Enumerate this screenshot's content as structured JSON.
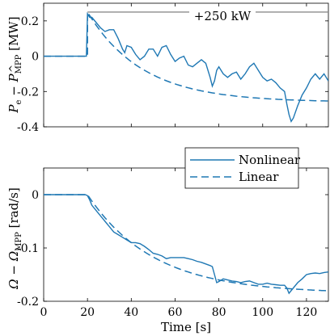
{
  "chart_data": [
    {
      "type": "line",
      "ylabel": "P_e − P̂_MPP [MW]",
      "ylabel_main": "P",
      "ylabel_main_sub": "e",
      "ylabel_minus": " − ",
      "ylabel_hat": "P",
      "ylabel_hat_sub": "MPP",
      "ylabel_unit": " [MW]",
      "xlim": [
        0,
        130
      ],
      "ylim": [
        -0.4,
        0.3
      ],
      "xticks": [
        0,
        20,
        40,
        60,
        80,
        100,
        120
      ],
      "yticks": [
        0.2,
        0,
        -0.2,
        -0.4
      ],
      "ytick_labels": [
        "0.2",
        "0",
        "-0.2",
        "-0.4"
      ],
      "annotation": "+250 kW",
      "reference_line": {
        "x": [
          20,
          130
        ],
        "y": 0.25
      },
      "series": [
        {
          "name": "Nonlinear",
          "style": "solid",
          "x": [
            0,
            19.5,
            20,
            21,
            22,
            24,
            26,
            28,
            30,
            32,
            34,
            36,
            37,
            38,
            40,
            42,
            44,
            45,
            46,
            48,
            50,
            52,
            54,
            56,
            58,
            60,
            62,
            64,
            66,
            68,
            70,
            72,
            74,
            76,
            77,
            78,
            79,
            80,
            82,
            84,
            86,
            88,
            90,
            92,
            94,
            96,
            98,
            100,
            102,
            104,
            106,
            108,
            110,
            111,
            112,
            113,
            114,
            116,
            118,
            120,
            122,
            124,
            126,
            128,
            130
          ],
          "y": [
            0,
            0,
            0.24,
            0.22,
            0.22,
            0.19,
            0.16,
            0.14,
            0.15,
            0.15,
            0.1,
            0.04,
            0.02,
            0.06,
            0.05,
            0.01,
            -0.02,
            -0.01,
            0.0,
            0.04,
            0.04,
            0.0,
            0.05,
            0.06,
            0.01,
            -0.03,
            -0.01,
            0.0,
            -0.05,
            -0.06,
            -0.04,
            -0.02,
            -0.04,
            -0.12,
            -0.17,
            -0.14,
            -0.08,
            -0.06,
            -0.1,
            -0.12,
            -0.1,
            -0.09,
            -0.13,
            -0.1,
            -0.06,
            -0.04,
            -0.08,
            -0.12,
            -0.14,
            -0.13,
            -0.15,
            -0.18,
            -0.2,
            -0.27,
            -0.33,
            -0.37,
            -0.35,
            -0.28,
            -0.22,
            -0.18,
            -0.13,
            -0.1,
            -0.13,
            -0.1,
            -0.14
          ]
        },
        {
          "name": "Linear",
          "style": "dashed",
          "x": [
            0,
            20,
            130
          ],
          "y": [
            0,
            0.25,
            -0.26
          ],
          "model": "exponential",
          "tau": 25
        }
      ]
    },
    {
      "type": "line",
      "xlabel": "Time [s]",
      "ylabel": "Ω − Ω̂_MPP [rad/s]",
      "ylabel_main": "Ω",
      "ylabel_minus": " − ",
      "ylabel_hat": "Ω",
      "ylabel_hat_sub": "MPP",
      "ylabel_unit": " [rad/s]",
      "xlim": [
        0,
        130
      ],
      "ylim": [
        -0.2,
        0.05
      ],
      "xticks": [
        0,
        20,
        40,
        60,
        80,
        100,
        120
      ],
      "xtick_labels": [
        "0",
        "20",
        "40",
        "60",
        "80",
        "100",
        "120"
      ],
      "yticks": [
        0,
        -0.1,
        -0.2
      ],
      "ytick_labels": [
        "0",
        "-0.1",
        "-0.2"
      ],
      "legend": {
        "placement": "top-right",
        "entries": [
          "Nonlinear",
          "Linear"
        ]
      },
      "series": [
        {
          "name": "Nonlinear",
          "style": "solid",
          "x": [
            0,
            19,
            20,
            21,
            22,
            24,
            26,
            28,
            30,
            32,
            34,
            36,
            38,
            40,
            42,
            44,
            46,
            48,
            50,
            52,
            54,
            56,
            58,
            60,
            62,
            64,
            66,
            68,
            70,
            72,
            74,
            76,
            77,
            78,
            79,
            80,
            82,
            84,
            86,
            88,
            90,
            92,
            94,
            96,
            98,
            100,
            102,
            104,
            106,
            108,
            110,
            111,
            112,
            114,
            116,
            118,
            120,
            122,
            124,
            126,
            128,
            130
          ],
          "y": [
            0,
            0,
            -0.002,
            -0.01,
            -0.02,
            -0.03,
            -0.04,
            -0.05,
            -0.06,
            -0.07,
            -0.075,
            -0.08,
            -0.085,
            -0.09,
            -0.09,
            -0.092,
            -0.097,
            -0.103,
            -0.11,
            -0.112,
            -0.115,
            -0.12,
            -0.118,
            -0.118,
            -0.118,
            -0.118,
            -0.12,
            -0.122,
            -0.125,
            -0.127,
            -0.13,
            -0.133,
            -0.135,
            -0.15,
            -0.165,
            -0.163,
            -0.158,
            -0.16,
            -0.162,
            -0.163,
            -0.165,
            -0.163,
            -0.162,
            -0.165,
            -0.168,
            -0.168,
            -0.166,
            -0.168,
            -0.169,
            -0.17,
            -0.17,
            -0.175,
            -0.185,
            -0.175,
            -0.165,
            -0.158,
            -0.15,
            -0.148,
            -0.147,
            -0.148,
            -0.146,
            -0.145
          ]
        },
        {
          "name": "Linear",
          "style": "dashed",
          "x": [
            0,
            20,
            130
          ],
          "y": [
            0,
            0,
            -0.185
          ],
          "model": "exponential",
          "tau": 30
        }
      ]
    }
  ],
  "colors": {
    "line": "#1f78b4",
    "ref": "#8c8c8c",
    "axis": "#000000"
  }
}
